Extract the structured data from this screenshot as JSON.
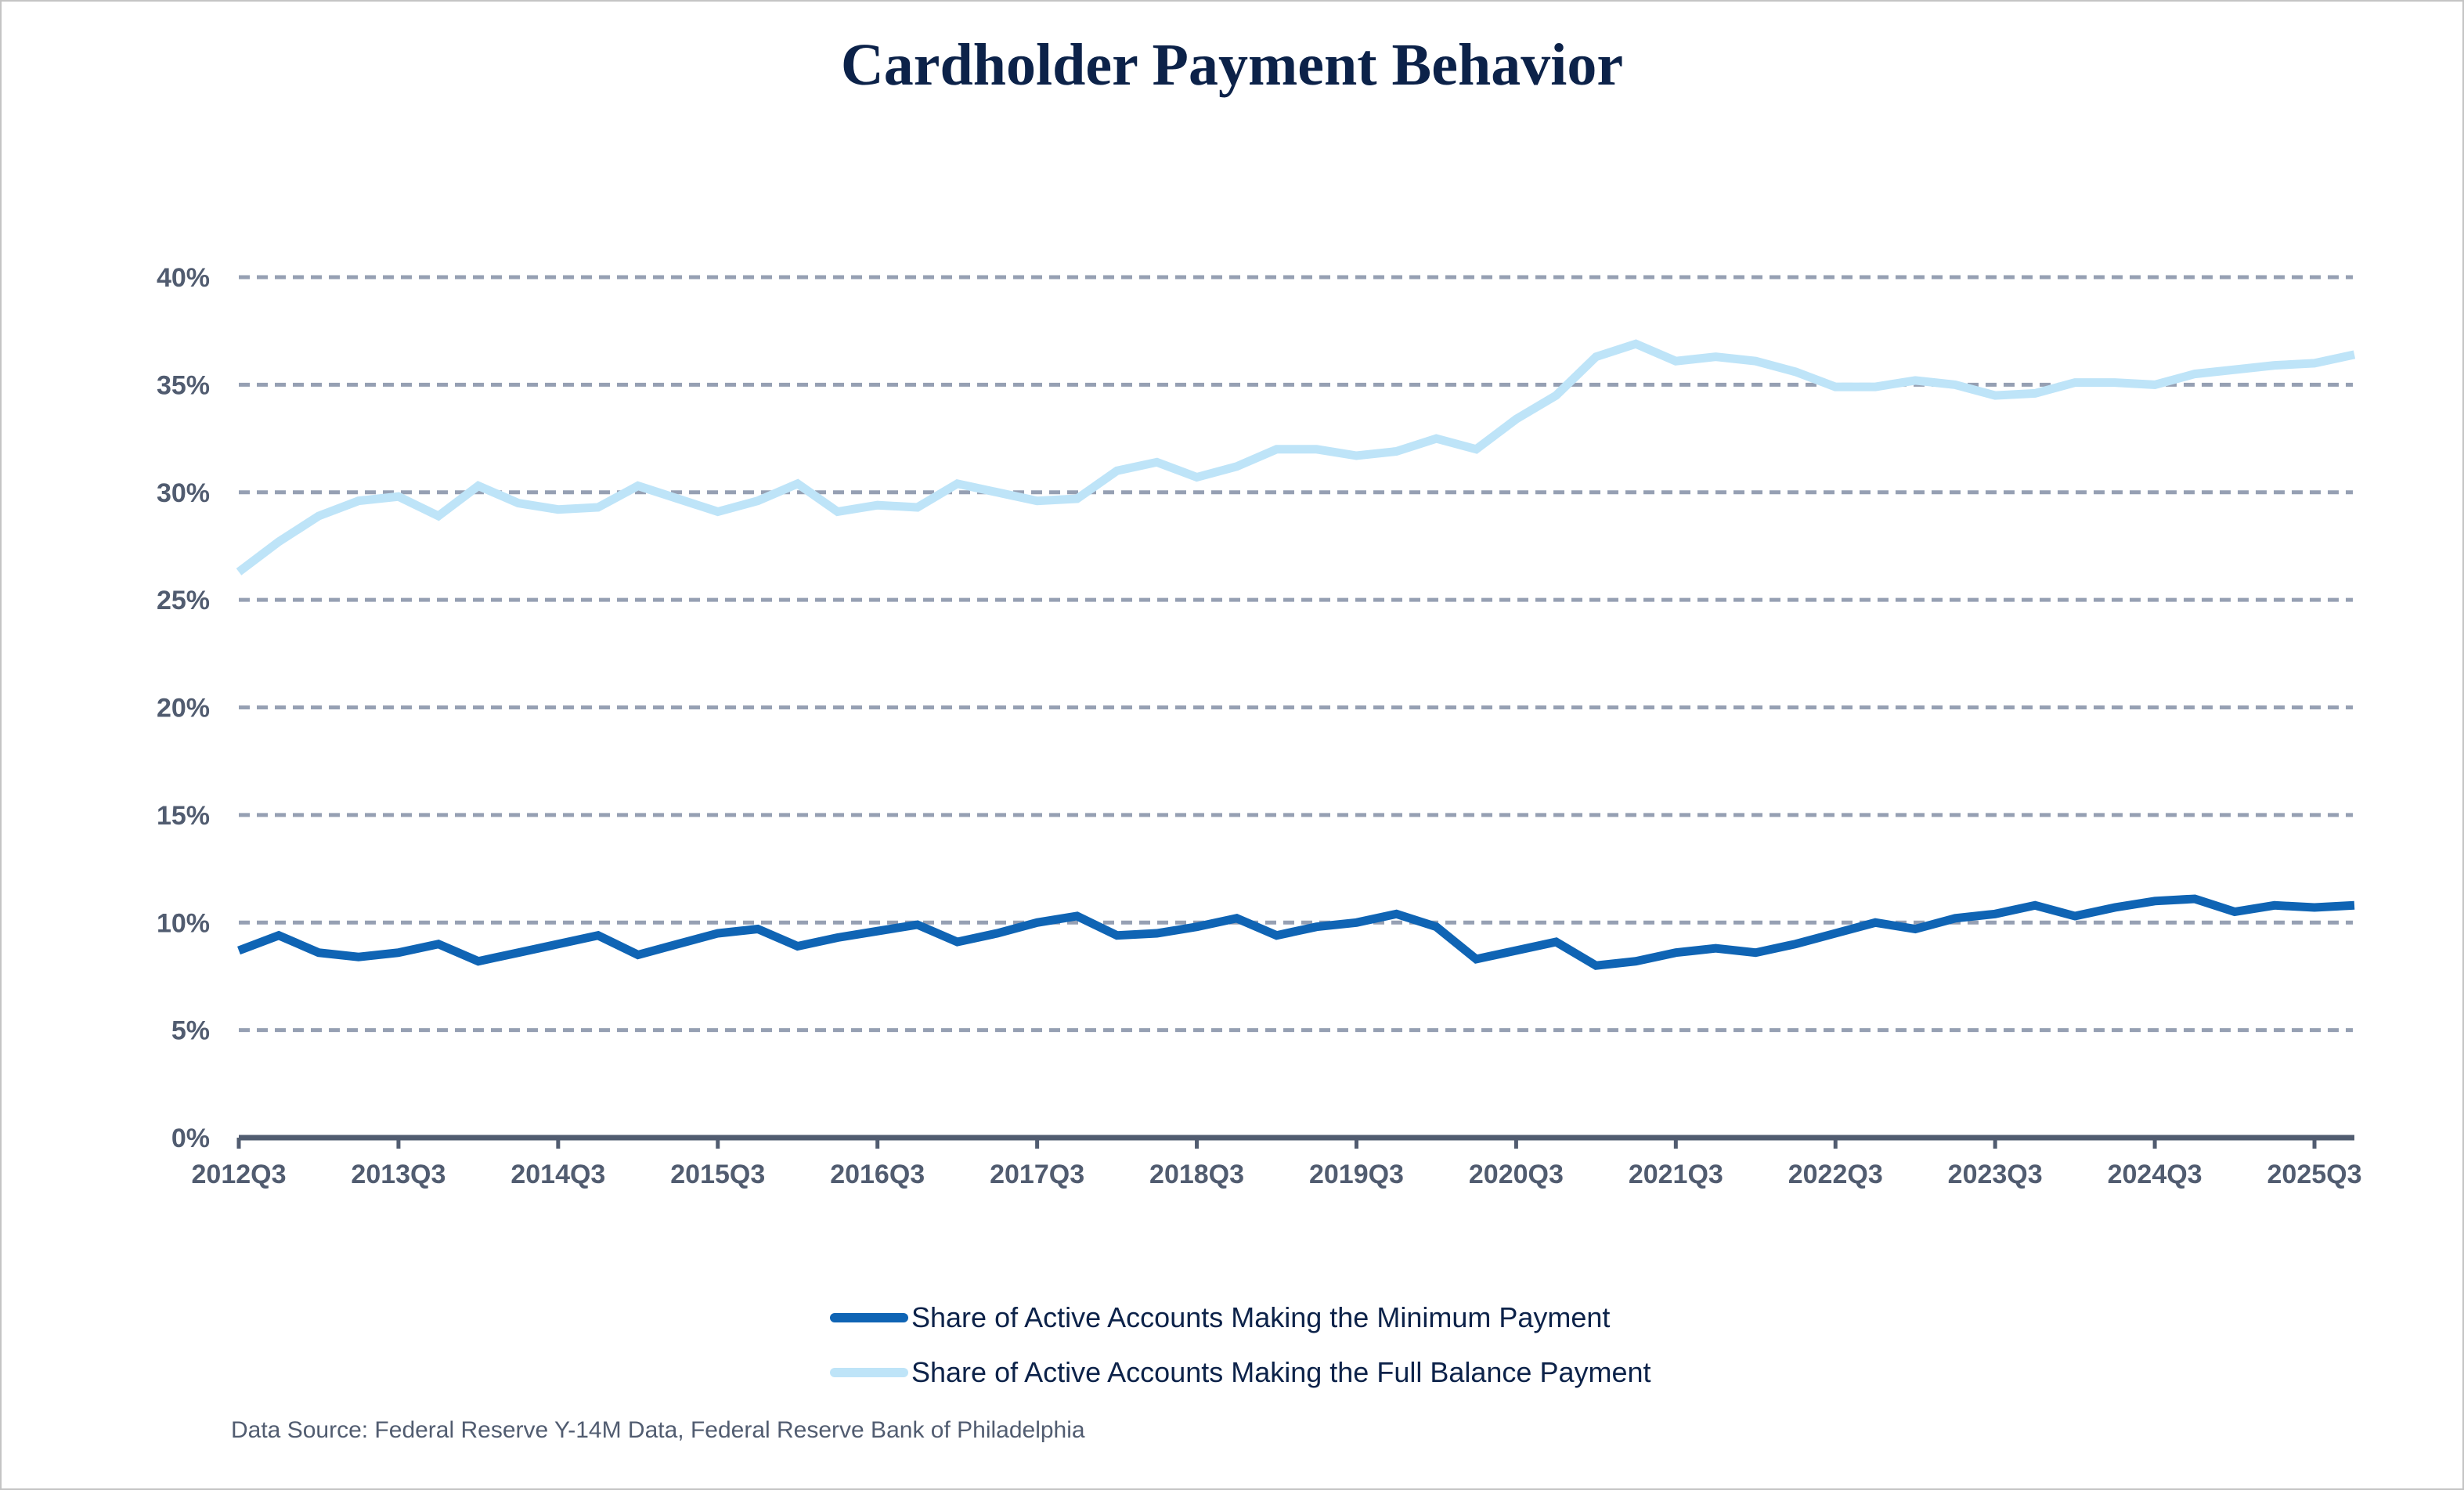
{
  "chart_data": {
    "type": "line",
    "title": "Cardholder Payment Behavior",
    "xlabel": "",
    "ylabel": "",
    "ylim": [
      0,
      40
    ],
    "y_ticks": [
      "0%",
      "5%",
      "10%",
      "15%",
      "20%",
      "25%",
      "30%",
      "35%",
      "40%"
    ],
    "y_tick_values": [
      0,
      5,
      10,
      15,
      20,
      25,
      30,
      35,
      40
    ],
    "x_tick_labels": [
      "2012Q3",
      "2013Q3",
      "2014Q3",
      "2015Q3",
      "2016Q3",
      "2017Q3",
      "2018Q3",
      "2019Q3",
      "2020Q3",
      "2021Q3",
      "2022Q3",
      "2023Q3",
      "2024Q3",
      "2025Q3"
    ],
    "grid": "horizontal dashed",
    "legend_position": "bottom-center",
    "x": [
      "2012Q3",
      "2012Q4",
      "2013Q1",
      "2013Q2",
      "2013Q3",
      "2013Q4",
      "2014Q1",
      "2014Q2",
      "2014Q3",
      "2014Q4",
      "2015Q1",
      "2015Q2",
      "2015Q3",
      "2015Q4",
      "2016Q1",
      "2016Q2",
      "2016Q3",
      "2016Q4",
      "2017Q1",
      "2017Q2",
      "2017Q3",
      "2017Q4",
      "2018Q1",
      "2018Q2",
      "2018Q3",
      "2018Q4",
      "2019Q1",
      "2019Q2",
      "2019Q3",
      "2019Q4",
      "2020Q1",
      "2020Q2",
      "2020Q3",
      "2020Q4",
      "2021Q1",
      "2021Q2",
      "2021Q3",
      "2021Q4",
      "2022Q1",
      "2022Q2",
      "2022Q3",
      "2022Q4",
      "2023Q1",
      "2023Q2",
      "2023Q3",
      "2023Q4",
      "2024Q1",
      "2024Q2",
      "2024Q3",
      "2024Q4",
      "2025Q1",
      "2025Q2",
      "2025Q3",
      "2025Q4"
    ],
    "series": [
      {
        "name": "Share of Active Accounts Making the Minimum Payment",
        "color": "#0f64b4",
        "values": [
          8.7,
          9.4,
          8.6,
          8.4,
          8.6,
          9.0,
          8.2,
          8.6,
          9.0,
          9.4,
          8.5,
          9.0,
          9.5,
          9.7,
          8.9,
          9.3,
          9.6,
          9.9,
          9.1,
          9.5,
          10.0,
          10.3,
          9.4,
          9.5,
          9.8,
          10.2,
          9.4,
          9.8,
          10.0,
          10.4,
          9.8,
          8.3,
          8.7,
          9.1,
          8.0,
          8.2,
          8.6,
          8.8,
          8.6,
          9.0,
          9.5,
          10.0,
          9.7,
          10.2,
          10.4,
          10.8,
          10.3,
          10.7,
          11.0,
          11.1,
          10.5,
          10.8,
          10.7,
          10.8
        ]
      },
      {
        "name": "Share of Active Accounts Making the Full Balance Payment",
        "color": "#bee4f8",
        "values": [
          26.3,
          27.7,
          28.9,
          29.6,
          29.8,
          28.9,
          30.3,
          29.5,
          29.2,
          29.3,
          30.3,
          29.7,
          29.1,
          29.6,
          30.4,
          29.1,
          29.4,
          29.3,
          30.4,
          30.0,
          29.6,
          29.7,
          31.0,
          31.4,
          30.7,
          31.2,
          32.0,
          32.0,
          31.7,
          31.9,
          32.5,
          32.0,
          33.4,
          34.5,
          36.3,
          36.9,
          36.1,
          36.3,
          36.1,
          35.6,
          34.9,
          34.9,
          35.2,
          35.0,
          34.5,
          34.6,
          35.1,
          35.1,
          35.0,
          35.5,
          35.7,
          35.9,
          36.0,
          36.4
        ]
      }
    ]
  },
  "colors": {
    "title": "#0c2249",
    "axis": "#515c70",
    "grid": "#96a0b3"
  },
  "footer": {
    "source": "Data Source: Federal Reserve Y-14M Data, Federal Reserve Bank of Philadelphia"
  }
}
